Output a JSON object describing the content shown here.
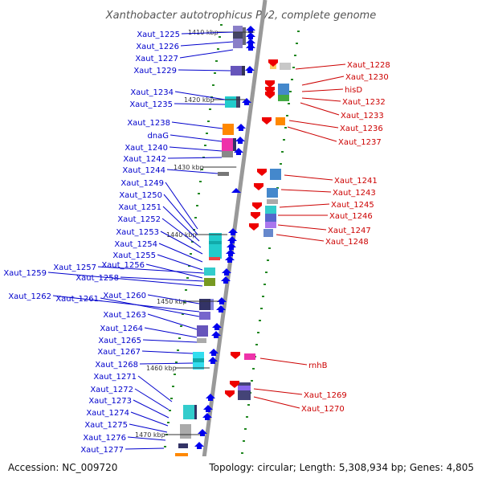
{
  "title": "Xanthobacter autotrophicus Py2, complete genome",
  "footer": {
    "accession": "Accession: NC_009720",
    "summary": "Topology: circular; Length: 5,308,934 bp; Genes: 4,805"
  },
  "colors": {
    "backbone": "#999999",
    "forward_label": "#0000cc",
    "reverse_label": "#cc0000",
    "forward_glyph": "#0000ee",
    "reverse_glyph": "#ee0000",
    "tick": "#228822"
  },
  "kbp_marks": [
    "1410 kbp",
    "1420 kbp",
    "1430 kbp",
    "1440 kbp",
    "1450 kbp",
    "1460 kbp",
    "1470 kbp"
  ],
  "forward_genes": [
    "Xaut_1225",
    "Xaut_1226",
    "Xaut_1227",
    "Xaut_1229",
    "Xaut_1234",
    "Xaut_1235",
    "Xaut_1238",
    "dnaG",
    "Xaut_1240",
    "Xaut_1242",
    "Xaut_1244",
    "Xaut_1249",
    "Xaut_1250",
    "Xaut_1251",
    "Xaut_1252",
    "Xaut_1253",
    "Xaut_1254",
    "Xaut_1255",
    "Xaut_1256",
    "Xaut_1257",
    "Xaut_1259",
    "Xaut_1258",
    "Xaut_1260",
    "Xaut_1262",
    "Xaut_1261",
    "Xaut_1263",
    "Xaut_1264",
    "Xaut_1265",
    "Xaut_1267",
    "Xaut_1268",
    "Xaut_1271",
    "Xaut_1272",
    "Xaut_1273",
    "Xaut_1274",
    "Xaut_1275",
    "Xaut_1276",
    "Xaut_1277"
  ],
  "reverse_genes": [
    "Xaut_1228",
    "Xaut_1230",
    "hisD",
    "Xaut_1232",
    "Xaut_1233",
    "Xaut_1236",
    "Xaut_1237",
    "Xaut_1241",
    "Xaut_1243",
    "Xaut_1245",
    "Xaut_1246",
    "Xaut_1247",
    "Xaut_1248",
    "rnhB",
    "Xaut_1269",
    "Xaut_1270"
  ]
}
